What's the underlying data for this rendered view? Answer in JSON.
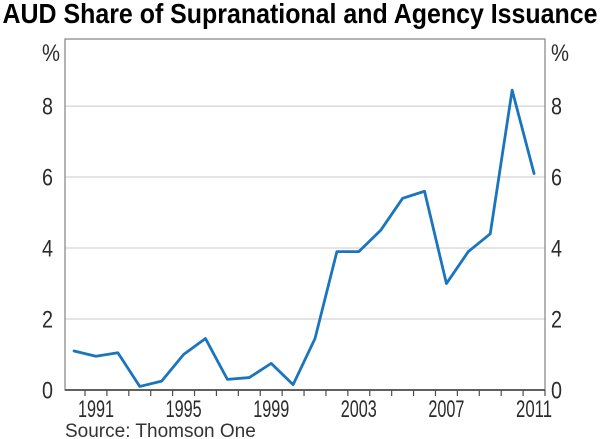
{
  "title": "AUD Share of Supranational and Agency Issuance",
  "source_note": "Source: Thomson One",
  "axis": {
    "unit_left": "%",
    "unit_right": "%"
  },
  "colors": {
    "line": "#1b75bc",
    "grid": "#c9c9c9",
    "frame": "#828282",
    "axis": "#4d4d4d",
    "text": "#2b2b2b"
  },
  "chart_data": {
    "type": "line",
    "title": "AUD Share of Supranational and Agency Issuance",
    "series_name": "AUD share of supranational and agency issuance",
    "x": [
      1990,
      1991,
      1992,
      1993,
      1994,
      1995,
      1996,
      1997,
      1998,
      1999,
      2000,
      2001,
      2002,
      2003,
      2004,
      2005,
      2006,
      2007,
      2008,
      2009,
      2010,
      2011
    ],
    "values": [
      1.1,
      0.95,
      1.05,
      0.1,
      0.25,
      1.0,
      1.45,
      0.3,
      0.35,
      0.75,
      0.15,
      1.45,
      3.9,
      3.9,
      4.5,
      5.4,
      5.6,
      3.0,
      3.9,
      4.4,
      8.45,
      6.1
    ],
    "ylabel": "%",
    "ylim": [
      0,
      9.89
    ],
    "yticks": [
      0,
      2,
      4,
      6,
      8
    ],
    "xticks_start": 1991,
    "xticks_end": 2012,
    "xtick_interval": 1,
    "xtick_labels": [
      "1991",
      "1995",
      "1999",
      "2003",
      "2007",
      "2011"
    ],
    "grid": true,
    "legend": "none"
  }
}
